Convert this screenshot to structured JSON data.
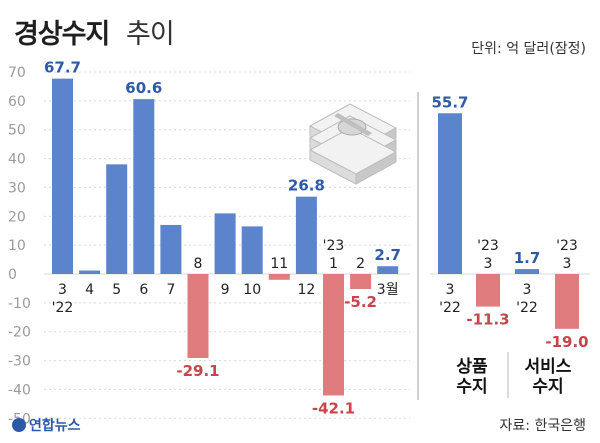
{
  "header": {
    "title_main": "경상수지",
    "title_sub": "추이",
    "unit": "단위: 억 달러(잠정)"
  },
  "footer": {
    "source": "자료: 한국은행",
    "logo": "연합뉴스"
  },
  "chart_data": [
    {
      "type": "bar",
      "title": "경상수지 추이",
      "ylim": [
        -50,
        70
      ],
      "yticks": [
        -50,
        -40,
        -30,
        -20,
        -10,
        0,
        10,
        20,
        30,
        40,
        50,
        60,
        70
      ],
      "categories": [
        "3",
        "4",
        "5",
        "6",
        "7",
        "8",
        "9",
        "10",
        "11",
        "12",
        "1",
        "2",
        "3월"
      ],
      "year_labels": [
        {
          "index": 0,
          "text": "'22"
        },
        {
          "index": 10,
          "text": "'23"
        }
      ],
      "values": [
        67.7,
        1.2,
        38.0,
        60.6,
        17.0,
        -29.1,
        21.0,
        16.5,
        -2.0,
        26.8,
        -42.1,
        -5.2,
        2.7
      ],
      "data_labels": [
        {
          "index": 0,
          "text": "67.7"
        },
        {
          "index": 3,
          "text": "60.6"
        },
        {
          "index": 5,
          "text": "-29.1"
        },
        {
          "index": 9,
          "text": "26.8"
        },
        {
          "index": 10,
          "text": "-42.1"
        },
        {
          "index": 11,
          "text": "-5.2"
        },
        {
          "index": 12,
          "text": "2.7"
        }
      ]
    },
    {
      "type": "bar",
      "title": "상품 수지",
      "categories": [
        "3",
        "3"
      ],
      "year_labels": [
        "'22",
        "'23"
      ],
      "values": [
        55.7,
        -11.3
      ],
      "data_labels": [
        "55.7",
        "-11.3"
      ]
    },
    {
      "type": "bar",
      "title": "서비스 수지",
      "categories": [
        "3",
        "3"
      ],
      "year_labels": [
        "'22",
        "'23"
      ],
      "values": [
        1.7,
        -19.0
      ],
      "data_labels": [
        "1.7",
        "-19.0"
      ]
    }
  ],
  "colors": {
    "positive": "#5b84cc",
    "negative": "#e07b7e",
    "positive_label": "#2f5ba6",
    "negative_label": "#c9434b",
    "axis_text": "#9a9a9a",
    "category_text": "#222222",
    "grid": "#d9d9d9"
  }
}
